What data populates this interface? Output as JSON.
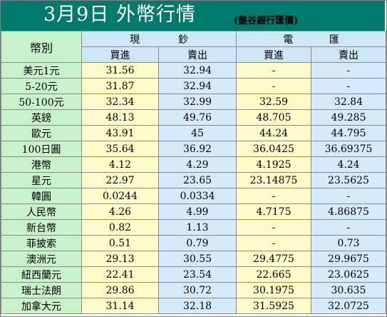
{
  "title": "3月9日 外幣行情",
  "subtitle": "(盤谷銀行匯價)",
  "headers": {
    "currency": "幣別",
    "cash": [
      "現",
      "鈔"
    ],
    "tt": [
      "電",
      "匯"
    ],
    "buy": "買進",
    "sell": "賣出"
  },
  "rows": [
    {
      "name": "美元1元",
      "cash_buy": "31.56",
      "cash_sell": "32.94",
      "tt_buy": "-",
      "tt_sell": "-"
    },
    {
      "name": "5-20元",
      "cash_buy": "31.87",
      "cash_sell": "32.94",
      "tt_buy": "-",
      "tt_sell": "-"
    },
    {
      "name": "50-100元",
      "cash_buy": "32.34",
      "cash_sell": "32.99",
      "tt_buy": "32.59",
      "tt_sell": "32.84"
    },
    {
      "name": "英鎊",
      "cash_buy": "48.13",
      "cash_sell": "49.76",
      "tt_buy": "48.705",
      "tt_sell": "49.285"
    },
    {
      "name": "歐元",
      "cash_buy": "43.91",
      "cash_sell": "45",
      "tt_buy": "44.24",
      "tt_sell": "44.795"
    },
    {
      "name": "100日圓",
      "cash_buy": "35.64",
      "cash_sell": "36.92",
      "tt_buy": "36.0425",
      "tt_sell": "36.69375"
    },
    {
      "name": "港幣",
      "cash_buy": "4.12",
      "cash_sell": "4.29",
      "tt_buy": "4.1925",
      "tt_sell": "4.24"
    },
    {
      "name": "星元",
      "cash_buy": "22.97",
      "cash_sell": "23.65",
      "tt_buy": "23.14875",
      "tt_sell": "23.5625"
    },
    {
      "name": "韓圓",
      "cash_buy": "0.0244",
      "cash_sell": "0.0334",
      "tt_buy": "-",
      "tt_sell": "-"
    },
    {
      "name": "人民幣",
      "cash_buy": "4.26",
      "cash_sell": "4.99",
      "tt_buy": "4.7175",
      "tt_sell": "4.86875"
    },
    {
      "name": "新台幣",
      "cash_buy": "0.82",
      "cash_sell": "1.13",
      "tt_buy": "-",
      "tt_sell": "-"
    },
    {
      "name": "菲披索",
      "cash_buy": "0.51",
      "cash_sell": "0.79",
      "tt_buy": "-",
      "tt_sell": "0.73"
    },
    {
      "name": "澳洲元",
      "cash_buy": "29.13",
      "cash_sell": "30.55",
      "tt_buy": "29.4775",
      "tt_sell": "29.9675"
    },
    {
      "name": "紐西蘭元",
      "cash_buy": "22.41",
      "cash_sell": "23.54",
      "tt_buy": "22.665",
      "tt_sell": "23.0625"
    },
    {
      "name": "瑞士法朗",
      "cash_buy": "29.86",
      "cash_sell": "30.72",
      "tt_buy": "30.1975",
      "tt_sell": "30.635"
    },
    {
      "name": "加拿大元",
      "cash_buy": "31.14",
      "cash_sell": "32.18",
      "tt_buy": "31.5925",
      "tt_sell": "32.0725"
    }
  ],
  "colors": {
    "header_bg": "#007a6b",
    "label_bg": "#c8f2c8",
    "cash_bg": "#fffac8",
    "tt_bg": "#d5eafb"
  }
}
